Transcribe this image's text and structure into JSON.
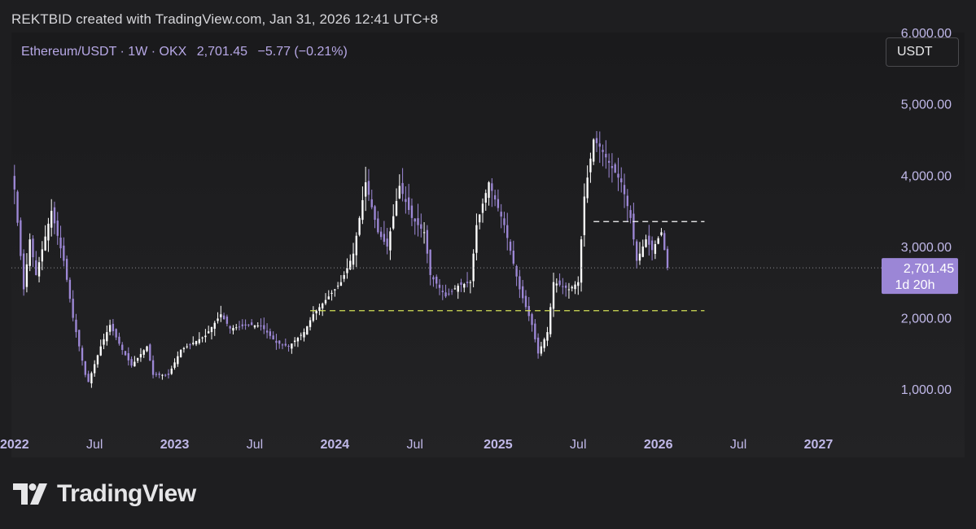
{
  "header": {
    "credit": "REKTBID created with TradingView.com, Jan 31, 2026 12:41 UTC+8"
  },
  "legend": {
    "symbol": "Ethereum/USDT · 1W · OKX",
    "price": "2,701.45",
    "change": "−5.77 (−0.21%)"
  },
  "toolbar": {
    "currency": "USDT"
  },
  "price_tag": {
    "price": "2,701.45",
    "countdown": "1d 20h"
  },
  "brand": {
    "name": "TradingView"
  },
  "colors": {
    "bull": "#ffffff",
    "bear": "#9d88d6",
    "support": "#d4e157",
    "resistance": "#ffffff",
    "tag": "#9b86d6",
    "axis_text": "#c0b8e8"
  },
  "chart_data": {
    "type": "candlestick",
    "timeframe": "1W",
    "ylim": [
      500,
      6000
    ],
    "y_ticks": [
      {
        "value": 1000,
        "label": "1,000.00"
      },
      {
        "value": 2000,
        "label": "2,000.00"
      },
      {
        "value": 3000,
        "label": "3,000.00"
      },
      {
        "value": 4000,
        "label": "4,000.00"
      },
      {
        "value": 5000,
        "label": "5,000.00"
      },
      {
        "value": 6000,
        "label": "6,000.00"
      }
    ],
    "x_range": [
      "2021-12-27",
      "2027-04-26"
    ],
    "x_ticks": [
      {
        "date": "2022-01-03",
        "label": "2022",
        "major": true
      },
      {
        "date": "2022-07-04",
        "label": "Jul",
        "major": false
      },
      {
        "date": "2023-01-02",
        "label": "2023",
        "major": true
      },
      {
        "date": "2023-07-03",
        "label": "Jul",
        "major": false
      },
      {
        "date": "2024-01-01",
        "label": "2024",
        "major": true
      },
      {
        "date": "2024-07-01",
        "label": "Jul",
        "major": false
      },
      {
        "date": "2025-01-06",
        "label": "2025",
        "major": true
      },
      {
        "date": "2025-07-07",
        "label": "Jul",
        "major": false
      },
      {
        "date": "2026-01-05",
        "label": "2026",
        "major": true
      },
      {
        "date": "2026-07-06",
        "label": "Jul",
        "major": false
      },
      {
        "date": "2027-01-04",
        "label": "2027",
        "major": true
      }
    ],
    "last_price": 2701.45,
    "horizontal_lines": [
      {
        "name": "resistance",
        "price": 3350,
        "from": "2025-08-11",
        "to": "2026-04-20",
        "color": "#ffffff"
      },
      {
        "name": "support",
        "price": 2100,
        "from": "2023-11-06",
        "to": "2026-04-20",
        "color": "#d4e157"
      }
    ],
    "waypoints": [
      [
        "2022-01-03",
        3800
      ],
      [
        "2022-01-24",
        2400
      ],
      [
        "2022-02-07",
        3100
      ],
      [
        "2022-02-21",
        2600
      ],
      [
        "2022-03-28",
        3500
      ],
      [
        "2022-04-25",
        2800
      ],
      [
        "2022-05-16",
        2000
      ],
      [
        "2022-06-13",
        1200
      ],
      [
        "2022-06-20",
        1100
      ],
      [
        "2022-07-18",
        1600
      ],
      [
        "2022-08-08",
        1900
      ],
      [
        "2022-09-05",
        1550
      ],
      [
        "2022-09-26",
        1330
      ],
      [
        "2022-10-31",
        1600
      ],
      [
        "2022-11-14",
        1200
      ],
      [
        "2022-12-19",
        1200
      ],
      [
        "2023-01-16",
        1550
      ],
      [
        "2023-02-13",
        1650
      ],
      [
        "2023-03-13",
        1750
      ],
      [
        "2023-04-17",
        2050
      ],
      [
        "2023-05-08",
        1850
      ],
      [
        "2023-06-19",
        1900
      ],
      [
        "2023-07-17",
        1890
      ],
      [
        "2023-08-21",
        1650
      ],
      [
        "2023-09-18",
        1600
      ],
      [
        "2023-10-23",
        1800
      ],
      [
        "2023-11-13",
        2050
      ],
      [
        "2023-12-18",
        2300
      ],
      [
        "2024-01-15",
        2500
      ],
      [
        "2024-02-12",
        2900
      ],
      [
        "2024-03-11",
        3900
      ],
      [
        "2024-04-08",
        3200
      ],
      [
        "2024-04-29",
        3000
      ],
      [
        "2024-05-27",
        3850
      ],
      [
        "2024-06-24",
        3400
      ],
      [
        "2024-07-22",
        3200
      ],
      [
        "2024-08-05",
        2600
      ],
      [
        "2024-09-09",
        2300
      ],
      [
        "2024-10-07",
        2450
      ],
      [
        "2024-11-04",
        2500
      ],
      [
        "2024-11-18",
        3300
      ],
      [
        "2024-12-16",
        3900
      ],
      [
        "2025-01-20",
        3300
      ],
      [
        "2025-02-24",
        2400
      ],
      [
        "2025-03-24",
        1900
      ],
      [
        "2025-04-07",
        1500
      ],
      [
        "2025-04-28",
        1800
      ],
      [
        "2025-05-12",
        2500
      ],
      [
        "2025-06-16",
        2400
      ],
      [
        "2025-07-07",
        2500
      ],
      [
        "2025-07-21",
        3700
      ],
      [
        "2025-08-11",
        4500
      ],
      [
        "2025-08-25",
        4400
      ],
      [
        "2025-09-22",
        4100
      ],
      [
        "2025-10-13",
        3900
      ],
      [
        "2025-11-03",
        3400
      ],
      [
        "2025-11-17",
        2800
      ],
      [
        "2025-12-08",
        3100
      ],
      [
        "2025-12-22",
        2950
      ],
      [
        "2026-01-12",
        3200
      ],
      [
        "2026-01-26",
        2701.45
      ]
    ]
  }
}
